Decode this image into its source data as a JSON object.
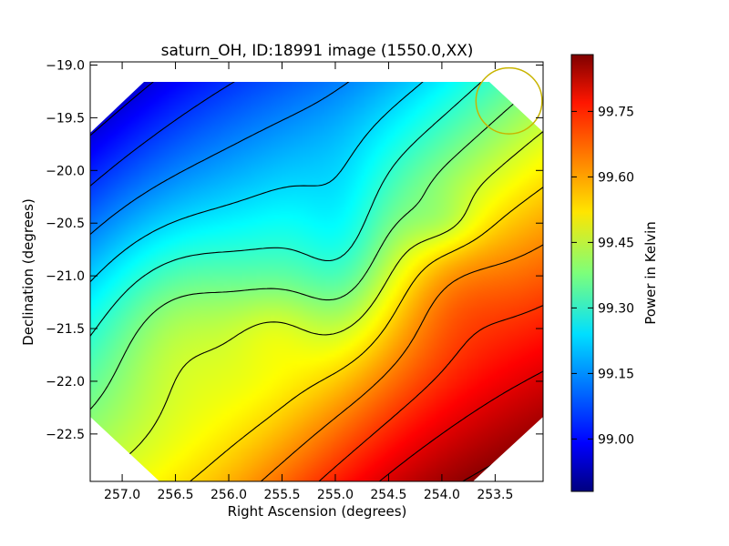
{
  "chart_data": {
    "type": "heatmap",
    "title": "saturn_OH, ID:18991 image (1550.0,XX)",
    "xlabel": "Right Ascension (degrees)",
    "ylabel": "Declination (degrees)",
    "colorbar_label": "Power in Kelvin",
    "colormap": "jet",
    "xlim": [
      257.3,
      253.05
    ],
    "ylim": [
      -22.95,
      -18.97
    ],
    "x_ticks": [
      257.0,
      256.5,
      256.0,
      255.5,
      255.0,
      254.5,
      254.0,
      253.5
    ],
    "x_tick_labels": [
      "257.0",
      "256.5",
      "256.0",
      "255.5",
      "255.0",
      "254.5",
      "254.0",
      "253.5"
    ],
    "y_ticks": [
      -19.0,
      -19.5,
      -20.0,
      -20.5,
      -21.0,
      -21.5,
      -22.0,
      -22.5
    ],
    "y_tick_labels": [
      "−19.0",
      "−19.5",
      "−20.0",
      "−20.5",
      "−21.0",
      "−21.5",
      "−22.0",
      "−22.5"
    ],
    "colorbar_range": [
      98.88,
      99.88
    ],
    "colorbar_ticks": [
      99.0,
      99.15,
      99.3,
      99.45,
      99.6,
      99.75
    ],
    "colorbar_tick_labels": [
      "99.00",
      "99.15",
      "99.30",
      "99.45",
      "99.60",
      "99.75"
    ],
    "contour_levels": [
      98.9,
      98.98,
      99.06,
      99.14,
      99.22,
      99.3,
      99.38,
      99.46,
      99.54,
      99.62,
      99.7,
      99.78,
      99.86
    ],
    "beam_circle": {
      "ra": 253.37,
      "dec": -19.34,
      "radius_deg": 0.31,
      "color": "#c8b400"
    },
    "field_of_view": "octagon",
    "value_range": [
      98.88,
      99.88
    ],
    "grid": false
  }
}
